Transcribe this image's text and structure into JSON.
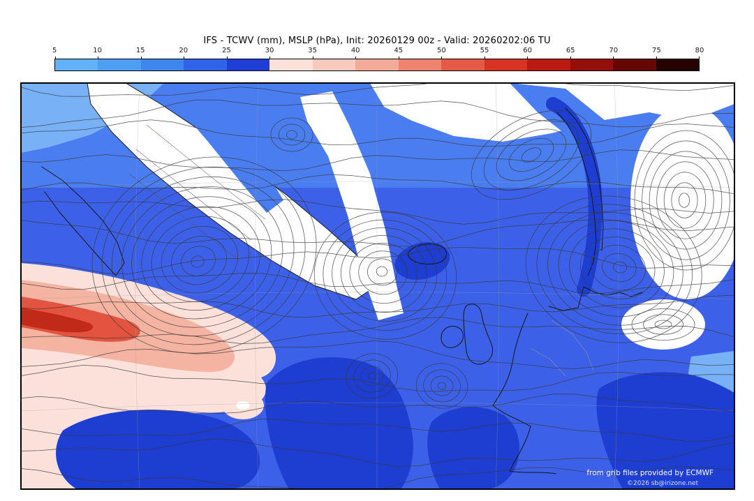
{
  "title": "IFS - TCWV (mm), MSLP (hPa), Init: 20260129 00z - Valid: 20260202:06 TU",
  "colorbar": {
    "tick_labels": [
      "5",
      "10",
      "15",
      "20",
      "25",
      "30",
      "35",
      "40",
      "45",
      "50",
      "55",
      "60",
      "65",
      "70",
      "75",
      "80"
    ],
    "segment_colors": [
      "#61b2f6",
      "#4e9ef3",
      "#3d86ef",
      "#2f64e9",
      "#1f3ed6",
      "#fbe1da",
      "#f8c9bd",
      "#f4aa99",
      "#ee8470",
      "#e55a46",
      "#d83424",
      "#ba1a11",
      "#940f0a",
      "#670705",
      "#250101"
    ]
  },
  "map": {
    "region": "North Atlantic and Europe",
    "shaded_field": "TCWV (mm)",
    "contoured_field": "MSLP (hPa)",
    "fill_colors": {
      "light_blue": "#79b1f6",
      "medium_blue": "#4a7df0",
      "royal_blue": "#3c60e8",
      "navy_blue": "#1e3ed2",
      "pale_pink": "#fbe1da",
      "pink": "#f5b3a1",
      "red": "#e25440",
      "dark_red": "#c12a18"
    }
  },
  "credits": {
    "line1": "from grib files provided by ECMWF",
    "line2": "©2026 sb@irizone.net"
  },
  "chart_data": {
    "type": "heatmap",
    "title": "IFS - TCWV (mm), MSLP (hPa), Init: 20260129 00z - Valid: 20260202:06 TU",
    "colorbar_ticks": [
      5,
      10,
      15,
      20,
      25,
      30,
      35,
      40,
      45,
      50,
      55,
      60,
      65,
      70,
      75,
      80
    ],
    "colorbar_range": [
      5,
      80
    ],
    "colorbar_step": 5,
    "legend_position": "top",
    "grid": false
  }
}
